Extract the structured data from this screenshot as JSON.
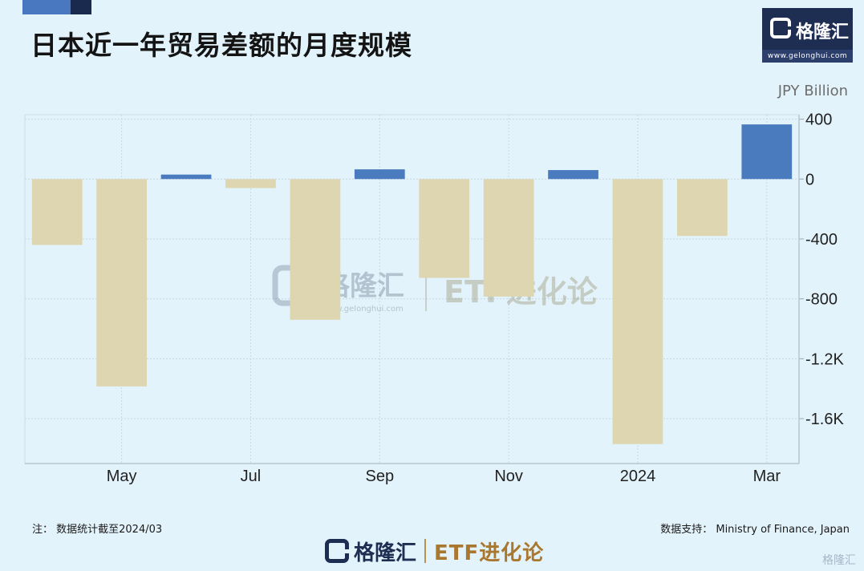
{
  "header": {
    "title": "日本近一年贸易差额的月度规模",
    "logo_brand": "格隆汇",
    "logo_url": "www.gelonghui.com"
  },
  "unit_label": "JPY Billion",
  "footer": {
    "note": "注：  数据统计截至2024/03",
    "source": "数据支持：  Ministry of Finance, Japan",
    "brand": "格隆汇",
    "brand_tag": "ETF进化论",
    "corner_watermark": "格隆汇"
  },
  "watermark": {
    "brand": "格隆汇",
    "url": "www.gelonghui.com",
    "tag": "ETF进化论"
  },
  "chart_data": {
    "type": "bar",
    "months": [
      "2023-04",
      "2023-05",
      "2023-06",
      "2023-07",
      "2023-08",
      "2023-09",
      "2023-10",
      "2023-11",
      "2023-12",
      "2024-01",
      "2024-02",
      "2024-03"
    ],
    "values": [
      -440,
      -1385,
      30,
      -60,
      -940,
      65,
      -660,
      -785,
      60,
      -1770,
      -380,
      365
    ],
    "x_tick_labels": [
      "May",
      "Jul",
      "Sep",
      "Nov",
      "2024",
      "Mar"
    ],
    "x_tick_months": [
      "2023-05",
      "2023-07",
      "2023-09",
      "2023-11",
      "2024-01",
      "2024-03"
    ],
    "y_ticks": [
      400,
      0,
      -400,
      -800,
      -1200,
      -1600
    ],
    "y_tick_labels": [
      "400",
      "0",
      "-400",
      "-800",
      "-1.2K",
      "-1.6K"
    ],
    "ylim": [
      -1900,
      430
    ],
    "colors": {
      "positive": "#4a7bbf",
      "negative": "#ddd6b0"
    },
    "grid": true
  }
}
